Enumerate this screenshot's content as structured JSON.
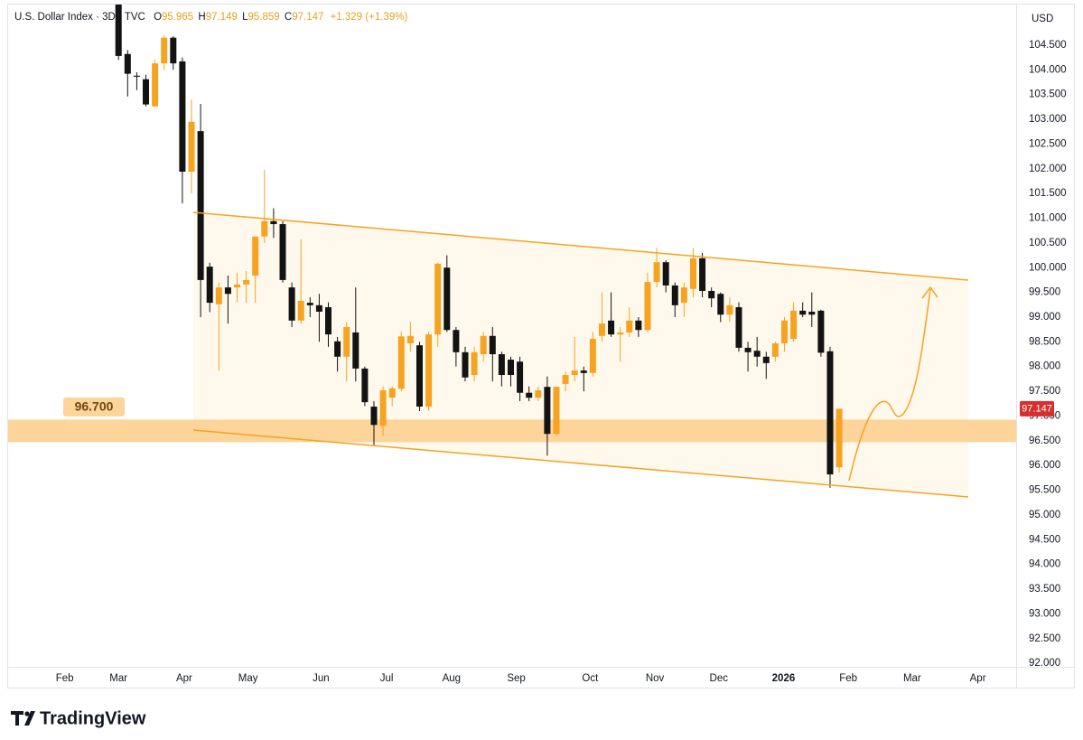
{
  "chart_data": {
    "type": "candlestick",
    "title": "U.S. Dollar Index · 3D · TVC",
    "ohlc_labels": [
      "O",
      "H",
      "L",
      "C"
    ],
    "change": "+1.329 (+1.39%)",
    "currency": "USD",
    "colors": {
      "up": "#f6a321",
      "down": "#131313"
    },
    "ohlc": [
      [
        105.32,
        105.32,
        104.2,
        104.28
      ],
      [
        104.32,
        104.4,
        103.46,
        103.92
      ],
      [
        103.88,
        103.95,
        103.59,
        103.86
      ],
      [
        103.81,
        103.9,
        103.26,
        103.3
      ],
      [
        103.26,
        104.2,
        103.26,
        104.13
      ],
      [
        104.13,
        104.7,
        104.0,
        104.65
      ],
      [
        104.65,
        104.68,
        104.0,
        104.13
      ],
      [
        104.17,
        104.25,
        101.3,
        101.94
      ],
      [
        101.94,
        103.4,
        101.5,
        102.95
      ],
      [
        102.76,
        103.31,
        99.0,
        99.75
      ],
      [
        100.02,
        100.1,
        99.1,
        99.29
      ],
      [
        99.26,
        99.7,
        97.92,
        99.6
      ],
      [
        99.6,
        99.84,
        98.87,
        99.47
      ],
      [
        99.6,
        99.9,
        99.3,
        99.66
      ],
      [
        99.66,
        99.93,
        99.29,
        99.75
      ],
      [
        99.84,
        100.63,
        99.29,
        100.63
      ],
      [
        100.63,
        101.98,
        100.5,
        100.94
      ],
      [
        100.94,
        101.2,
        100.6,
        100.88
      ],
      [
        100.88,
        100.94,
        99.7,
        99.75
      ],
      [
        99.6,
        99.7,
        98.8,
        98.93
      ],
      [
        98.93,
        100.57,
        98.87,
        99.33
      ],
      [
        99.29,
        99.4,
        99.0,
        99.24
      ],
      [
        99.24,
        99.47,
        98.5,
        99.11
      ],
      [
        99.2,
        99.3,
        98.4,
        98.65
      ],
      [
        98.51,
        98.6,
        97.9,
        98.2
      ],
      [
        98.2,
        98.9,
        97.7,
        98.8
      ],
      [
        98.69,
        99.6,
        97.7,
        97.96
      ],
      [
        97.96,
        98.0,
        97.2,
        97.28
      ],
      [
        97.19,
        97.3,
        96.4,
        96.82
      ],
      [
        96.8,
        97.6,
        96.6,
        97.52
      ],
      [
        97.37,
        97.6,
        97.2,
        97.56
      ],
      [
        97.55,
        98.7,
        97.5,
        98.61
      ],
      [
        98.47,
        98.9,
        98.3,
        98.62
      ],
      [
        98.43,
        98.5,
        97.1,
        97.19
      ],
      [
        97.19,
        98.7,
        97.1,
        98.65
      ],
      [
        98.65,
        100.1,
        98.4,
        100.08
      ],
      [
        100.0,
        100.25,
        98.7,
        98.74
      ],
      [
        98.74,
        98.8,
        98.0,
        98.29
      ],
      [
        98.29,
        98.4,
        97.7,
        97.78
      ],
      [
        97.83,
        98.4,
        97.7,
        98.29
      ],
      [
        98.25,
        98.7,
        98.1,
        98.62
      ],
      [
        98.62,
        98.8,
        97.7,
        98.25
      ],
      [
        98.25,
        98.3,
        97.6,
        97.83
      ],
      [
        98.14,
        98.2,
        97.6,
        97.83
      ],
      [
        98.1,
        98.2,
        97.3,
        97.47
      ],
      [
        97.47,
        97.6,
        97.3,
        97.37
      ],
      [
        97.37,
        97.6,
        97.3,
        97.52
      ],
      [
        97.59,
        97.8,
        96.2,
        96.64
      ],
      [
        96.64,
        97.6,
        96.6,
        97.59
      ],
      [
        97.65,
        97.9,
        97.5,
        97.83
      ],
      [
        97.83,
        98.6,
        97.7,
        97.92
      ],
      [
        97.92,
        98.0,
        97.5,
        97.87
      ],
      [
        97.87,
        98.7,
        97.8,
        98.56
      ],
      [
        98.62,
        99.5,
        98.5,
        98.87
      ],
      [
        98.93,
        99.5,
        98.6,
        98.65
      ],
      [
        98.65,
        98.8,
        98.1,
        98.69
      ],
      [
        98.69,
        99.2,
        98.6,
        98.93
      ],
      [
        98.93,
        99.0,
        98.6,
        98.74
      ],
      [
        98.74,
        99.9,
        98.7,
        99.71
      ],
      [
        99.71,
        100.4,
        99.6,
        100.11
      ],
      [
        100.11,
        100.15,
        99.5,
        99.64
      ],
      [
        99.64,
        99.7,
        99.0,
        99.24
      ],
      [
        99.29,
        99.7,
        99.0,
        99.6
      ],
      [
        99.57,
        100.4,
        99.4,
        100.19
      ],
      [
        100.19,
        100.3,
        99.4,
        99.53
      ],
      [
        99.53,
        99.6,
        99.2,
        99.38
      ],
      [
        99.47,
        99.5,
        98.9,
        99.05
      ],
      [
        99.05,
        99.4,
        98.9,
        99.24
      ],
      [
        99.2,
        99.3,
        98.3,
        98.38
      ],
      [
        98.38,
        98.5,
        97.9,
        98.29
      ],
      [
        98.32,
        98.6,
        98.0,
        98.2
      ],
      [
        98.2,
        98.3,
        97.75,
        98.07
      ],
      [
        98.2,
        98.5,
        98.1,
        98.47
      ],
      [
        98.47,
        99.0,
        98.3,
        98.93
      ],
      [
        98.56,
        99.3,
        98.5,
        99.13
      ],
      [
        99.13,
        99.3,
        99.0,
        99.05
      ],
      [
        99.11,
        99.5,
        98.8,
        99.05
      ],
      [
        99.13,
        99.15,
        98.2,
        98.28
      ],
      [
        98.31,
        98.4,
        95.55,
        95.82
      ],
      [
        95.965,
        97.149,
        95.859,
        97.147
      ]
    ],
    "xlim": [
      -12.2,
      98.4
    ],
    "xticks": [
      {
        "value": -5.9,
        "label": "Feb"
      },
      {
        "value": 0,
        "label": "Mar"
      },
      {
        "value": 7.2,
        "label": "Apr"
      },
      {
        "value": 14.2,
        "label": "May"
      },
      {
        "value": 22.2,
        "label": "Jun"
      },
      {
        "value": 29.4,
        "label": "Jul"
      },
      {
        "value": 36.5,
        "label": "Aug"
      },
      {
        "value": 43.6,
        "label": "Sep"
      },
      {
        "value": 51.7,
        "label": "Oct"
      },
      {
        "value": 58.8,
        "label": "Nov"
      },
      {
        "value": 65.8,
        "label": "Dec"
      },
      {
        "value": 72.9,
        "label": "2026"
      },
      {
        "value": 80.0,
        "label": "Feb"
      },
      {
        "value": 87.0,
        "label": "Mar"
      },
      {
        "value": 94.2,
        "label": "Apr"
      }
    ],
    "ylim": [
      91.93,
      105.32
    ],
    "yticks": [
      {
        "value": 92,
        "label": "92.000"
      },
      {
        "value": 92.5,
        "label": "92.500"
      },
      {
        "value": 93,
        "label": "93.000"
      },
      {
        "value": 93.5,
        "label": "93.500"
      },
      {
        "value": 94,
        "label": "94.000"
      },
      {
        "value": 94.5,
        "label": "94.500"
      },
      {
        "value": 95,
        "label": "95.000"
      },
      {
        "value": 95.5,
        "label": "95.500"
      },
      {
        "value": 96,
        "label": "96.000"
      },
      {
        "value": 96.5,
        "label": "96.500"
      },
      {
        "value": 97,
        "label": "97.000"
      },
      {
        "value": 97.5,
        "label": "97.500"
      },
      {
        "value": 98,
        "label": "98.000"
      },
      {
        "value": 98.5,
        "label": "98.500"
      },
      {
        "value": 99,
        "label": "99.000"
      },
      {
        "value": 99.5,
        "label": "99.500"
      },
      {
        "value": 100,
        "label": "100.000"
      },
      {
        "value": 100.5,
        "label": "100.500"
      },
      {
        "value": 101,
        "label": "101.000"
      },
      {
        "value": 101.5,
        "label": "101.500"
      },
      {
        "value": 102,
        "label": "102.000"
      },
      {
        "value": 102.5,
        "label": "102.500"
      },
      {
        "value": 103,
        "label": "103.000"
      },
      {
        "value": 103.5,
        "label": "103.500"
      },
      {
        "value": 104,
        "label": "104.000"
      },
      {
        "value": 104.5,
        "label": "104.500"
      }
    ],
    "zone": {
      "value": 96.7,
      "label": "96.700"
    }
  },
  "brand": "TradingView"
}
